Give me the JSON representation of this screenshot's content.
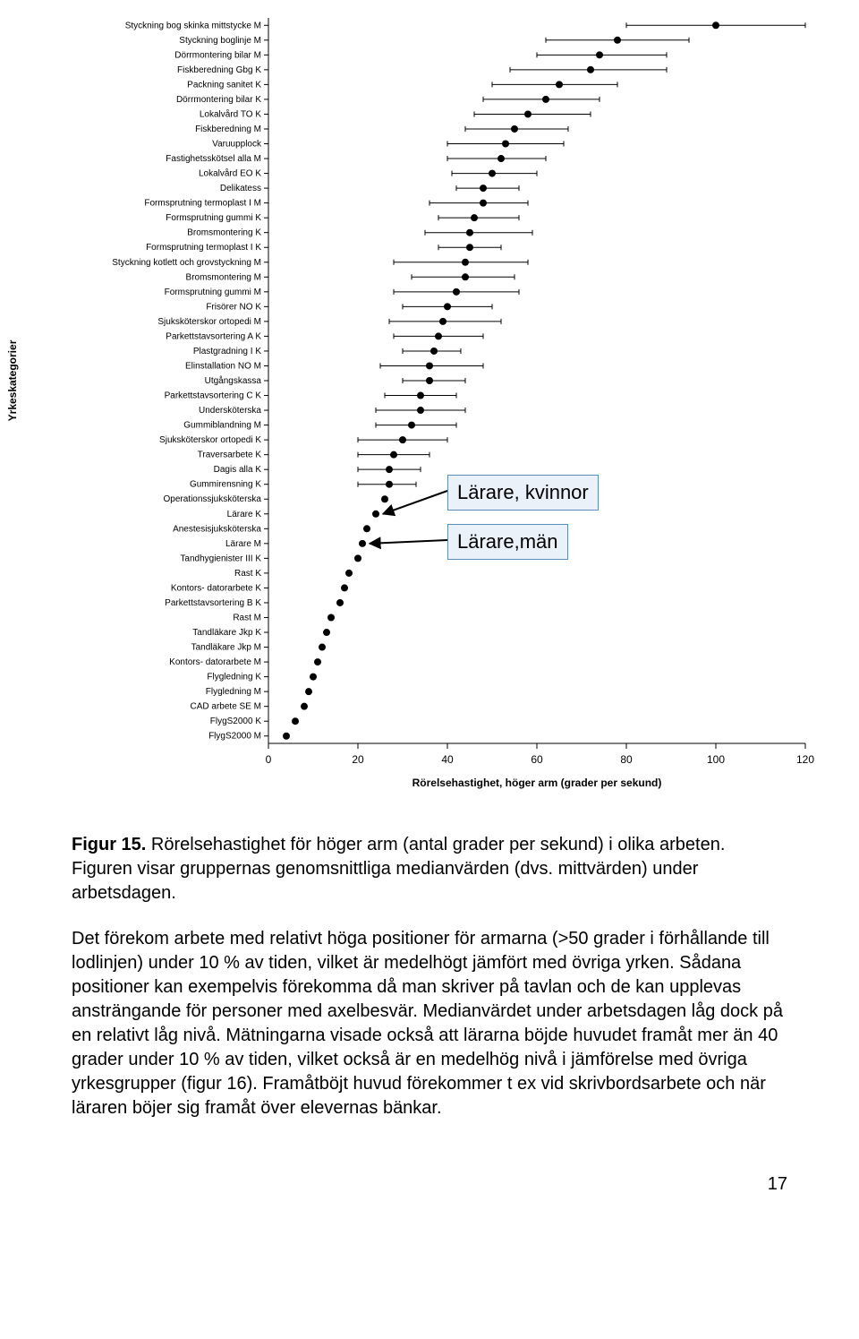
{
  "chart": {
    "type": "dot-with-error-bars",
    "y_axis_title": "Yrkeskategorier",
    "x_axis_title": "Rörelsehastighet, höger arm (grader per sekund)",
    "xlim": [
      0,
      120
    ],
    "xtick_step": 20,
    "xticks": [
      0,
      20,
      40,
      60,
      80,
      100,
      120
    ],
    "background_color": "#ffffff",
    "axis_color": "#000000",
    "tick_color": "#000000",
    "marker_color": "#000000",
    "error_bar_color": "#000000",
    "label_fontsize": 10,
    "axis_title_fontsize": 12,
    "marker_radius": 4,
    "error_cap_height": 6,
    "categories": [
      {
        "label": "Styckning bog skinka mittstycke M",
        "value": 100,
        "lo": 80,
        "hi": 120
      },
      {
        "label": "Styckning boglinje M",
        "value": 78,
        "lo": 62,
        "hi": 94
      },
      {
        "label": "Dörrmontering bilar M",
        "value": 74,
        "lo": 60,
        "hi": 89
      },
      {
        "label": "Fiskberedning Gbg K",
        "value": 72,
        "lo": 54,
        "hi": 89
      },
      {
        "label": "Packning sanitet K",
        "value": 65,
        "lo": 50,
        "hi": 78
      },
      {
        "label": "Dörrmontering bilar K",
        "value": 62,
        "lo": 48,
        "hi": 74
      },
      {
        "label": "Lokalvård TO K",
        "value": 58,
        "lo": 46,
        "hi": 72
      },
      {
        "label": "Fiskberedning M",
        "value": 55,
        "lo": 44,
        "hi": 67
      },
      {
        "label": "Varuupplock",
        "value": 53,
        "lo": 40,
        "hi": 66
      },
      {
        "label": "Fastighetsskötsel alla M",
        "value": 52,
        "lo": 40,
        "hi": 62
      },
      {
        "label": "Lokalvård EO K",
        "value": 50,
        "lo": 41,
        "hi": 60
      },
      {
        "label": "Delikatess",
        "value": 48,
        "lo": 42,
        "hi": 56
      },
      {
        "label": "Formsprutning termoplast I M",
        "value": 48,
        "lo": 36,
        "hi": 58
      },
      {
        "label": "Formsprutning gummi K",
        "value": 46,
        "lo": 38,
        "hi": 56
      },
      {
        "label": "Bromsmontering K",
        "value": 45,
        "lo": 35,
        "hi": 59
      },
      {
        "label": "Formsprutning termoplast I K",
        "value": 45,
        "lo": 38,
        "hi": 52
      },
      {
        "label": "Styckning kotlett och grovstyckning M",
        "value": 44,
        "lo": 28,
        "hi": 58
      },
      {
        "label": "Bromsmontering M",
        "value": 44,
        "lo": 32,
        "hi": 55
      },
      {
        "label": "Formsprutning gummi M",
        "value": 42,
        "lo": 28,
        "hi": 56
      },
      {
        "label": "Frisörer NO K",
        "value": 40,
        "lo": 30,
        "hi": 50
      },
      {
        "label": "Sjuksköterskor ortopedi M",
        "value": 39,
        "lo": 27,
        "hi": 52
      },
      {
        "label": "Parkettstavsortering  A K",
        "value": 38,
        "lo": 28,
        "hi": 48
      },
      {
        "label": "Plastgradning I K",
        "value": 37,
        "lo": 30,
        "hi": 43
      },
      {
        "label": "Elinstallation NO M",
        "value": 36,
        "lo": 25,
        "hi": 48
      },
      {
        "label": "Utgångskassa",
        "value": 36,
        "lo": 30,
        "hi": 44
      },
      {
        "label": "Parkettstavsortering C K",
        "value": 34,
        "lo": 26,
        "hi": 42
      },
      {
        "label": "Undersköterska",
        "value": 34,
        "lo": 24,
        "hi": 44
      },
      {
        "label": "Gummiblandning M",
        "value": 32,
        "lo": 24,
        "hi": 42
      },
      {
        "label": "Sjuksköterskor ortopedi K",
        "value": 30,
        "lo": 20,
        "hi": 40
      },
      {
        "label": "Traversarbete K",
        "value": 28,
        "lo": 20,
        "hi": 36
      },
      {
        "label": "Dagis alla K",
        "value": 27,
        "lo": 20,
        "hi": 34
      },
      {
        "label": "Gummirensning K",
        "value": 27,
        "lo": 20,
        "hi": 33
      },
      {
        "label": "Operationssjuksköterska",
        "value": 26,
        "lo": null,
        "hi": null
      },
      {
        "label": "Lärare K",
        "value": 24,
        "lo": null,
        "hi": null
      },
      {
        "label": "Anestesisjuksköterska",
        "value": 22,
        "lo": null,
        "hi": null
      },
      {
        "label": "Lärare M",
        "value": 21,
        "lo": null,
        "hi": null
      },
      {
        "label": "Tandhygienister III K",
        "value": 20,
        "lo": null,
        "hi": null
      },
      {
        "label": "Rast K",
        "value": 18,
        "lo": null,
        "hi": null
      },
      {
        "label": "Kontors- datorarbete K",
        "value": 17,
        "lo": null,
        "hi": null
      },
      {
        "label": "Parkettstavsortering B K",
        "value": 16,
        "lo": null,
        "hi": null
      },
      {
        "label": "Rast M",
        "value": 14,
        "lo": null,
        "hi": null
      },
      {
        "label": "Tandläkare Jkp K",
        "value": 13,
        "lo": null,
        "hi": null
      },
      {
        "label": "Tandläkare Jkp M",
        "value": 12,
        "lo": null,
        "hi": null
      },
      {
        "label": "Kontors- datorarbete M",
        "value": 11,
        "lo": null,
        "hi": null
      },
      {
        "label": "Flygledning K",
        "value": 10,
        "lo": null,
        "hi": null
      },
      {
        "label": "Flygledning M",
        "value": 9,
        "lo": null,
        "hi": null
      },
      {
        "label": "CAD arbete SE M",
        "value": 8,
        "lo": null,
        "hi": null
      },
      {
        "label": "FlygS2000 K",
        "value": 6,
        "lo": null,
        "hi": null
      },
      {
        "label": "FlygS2000 M",
        "value": 4,
        "lo": null,
        "hi": null
      }
    ]
  },
  "callouts": {
    "kvinnor": "Lärare, kvinnor",
    "man": "Lärare,män"
  },
  "caption": {
    "prefix": "Figur 15.",
    "rest": " Rörelsehastighet för höger arm (antal grader per sekund) i olika arbeten. Figuren visar gruppernas genomsnittliga medianvärden (dvs. mittvärden) under arbetsdagen."
  },
  "paragraph": "Det förekom arbete med relativt höga positioner för armarna (>50 grader i förhållande till lodlinjen) under 10 % av tiden, vilket är medelhögt jämfört med övriga yrken. Sådana positioner kan exempelvis förekomma då man skriver på tavlan och de kan upplevas ansträngande för personer med axelbesvär. Medianvärdet under arbetsdagen låg dock på en relativt låg nivå. Mätningarna visade också att lärarna böjde huvudet framåt mer än 40 grader under 10 % av tiden, vilket också är en medelhög nivå i jämförelse med övriga yrkesgrupper (figur 16).  Framåtböjt huvud förekommer t ex vid skrivbordsarbete och när läraren böjer sig framåt över elevernas bänkar.",
  "page_number": "17",
  "layout": {
    "callout_box_border": "#5b8db8",
    "callout_box_bg": "#eaf1f9",
    "arrow_color": "#000000"
  }
}
